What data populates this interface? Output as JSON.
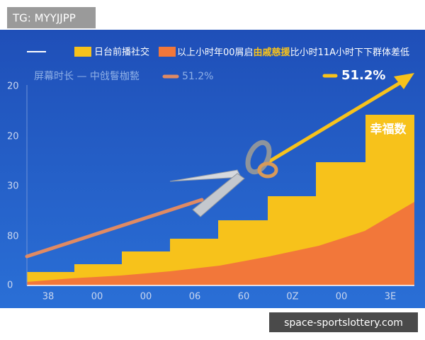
{
  "tag": "TG: MYYJJPP",
  "legend": {
    "item1": "日台前播社交",
    "item2": "以上小时年00屑启",
    "item2_highlight": "由戚慈援",
    "item2_tail": "比小时11A小时下下群体差低"
  },
  "subtitle": {
    "text": "屏幕时长 — 中戗鬙枷甃",
    "line1_label": "51.2%",
    "line2_label": "51.2%"
  },
  "badge": "幸福数",
  "y_labels": [
    "20",
    "20",
    "30",
    "80",
    "0"
  ],
  "x_labels": [
    "38",
    "00",
    "00",
    "06",
    "60",
    "0Z",
    "00",
    "3E"
  ],
  "watermark": "space-sportslottery.com"
}
